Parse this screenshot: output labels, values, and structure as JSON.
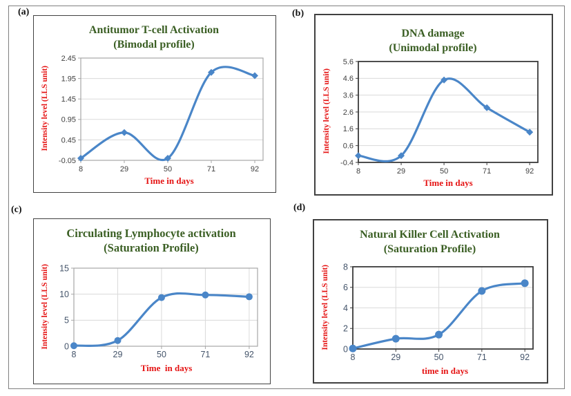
{
  "figure": {
    "background": "#ffffff",
    "outer_border_color": "#7f7f7f"
  },
  "colors": {
    "line_blue": "#4A86C8",
    "grid_gray": "#DADADA",
    "title_green": "#3A5E23",
    "axis_label_red": "#E51414",
    "border_light": "#A6A6A6",
    "border_dark": "#3A3A3A"
  },
  "chart_data": [
    {
      "type": "line",
      "panel_tag": "(a)",
      "title": "Antitumor T-cell Activation",
      "subtitle": "(Bimodal profile)",
      "ylabel": "Intensity level (LLS unit)",
      "xlabel": "Time in days",
      "x": [
        8,
        29,
        50,
        71,
        92
      ],
      "values": [
        0.0,
        0.63,
        0.0,
        2.1,
        2.02
      ],
      "xtick_labels": [
        "8",
        "29",
        "50",
        "71",
        "92"
      ],
      "ytick_values": [
        -0.05,
        0.45,
        0.95,
        1.45,
        1.95,
        2.45
      ],
      "ytick_labels": [
        "-0.05",
        "0.45",
        "0.95",
        "1.45",
        "1.95",
        "2.45"
      ],
      "xlim": [
        8,
        96
      ],
      "ylim": [
        -0.05,
        2.45
      ],
      "marker": "diamond",
      "grid_vertical": false,
      "border": "light",
      "tick_color": "#404040",
      "legend": null
    },
    {
      "type": "line",
      "panel_tag": "(b)",
      "title": "DNA damage",
      "subtitle": "(Unimodal profile)",
      "ylabel": "Intensity level (LLS unit)",
      "xlabel": "Time in days",
      "x": [
        8,
        29,
        50,
        71,
        92
      ],
      "values": [
        0.0,
        0.0,
        4.5,
        2.85,
        1.4
      ],
      "xtick_labels": [
        "8",
        "29",
        "50",
        "71",
        "92"
      ],
      "ytick_values": [
        -0.4,
        0.6,
        1.6,
        2.6,
        3.6,
        4.6,
        5.6
      ],
      "ytick_labels": [
        "-0.4",
        "0.6",
        "1.6",
        "2.6",
        "3.6",
        "4.6",
        "5.6"
      ],
      "xlim": [
        8,
        96
      ],
      "ylim": [
        -0.4,
        5.6
      ],
      "marker": "diamond",
      "grid_vertical": false,
      "border": "dark",
      "tick_color": "#404040",
      "legend": null
    },
    {
      "type": "line",
      "panel_tag": "(c)",
      "title": "Circulating Lymphocyte activation",
      "subtitle": "(Saturation Profile)",
      "ylabel": "Intensity level (LLS unit)",
      "xlabel": "Time  in days",
      "x": [
        8,
        29,
        50,
        71,
        92
      ],
      "values": [
        0.1,
        1.1,
        9.35,
        9.85,
        9.5
      ],
      "xtick_labels": [
        "8",
        "29",
        "50",
        "71",
        "92"
      ],
      "ytick_values": [
        0,
        5,
        10,
        15
      ],
      "ytick_labels": [
        "0",
        "5",
        "10",
        "15"
      ],
      "xlim": [
        8,
        96
      ],
      "ylim": [
        0,
        15
      ],
      "marker": "circle",
      "grid_vertical": true,
      "border": "light",
      "tick_color": "#44546A",
      "legend": null
    },
    {
      "type": "line",
      "panel_tag": "(d)",
      "title": "Natural Killer Cell Activation",
      "subtitle": "(Saturation Profile)",
      "ylabel": "Intensity level (LLS unit)",
      "xlabel": "time in days",
      "x": [
        8,
        29,
        50,
        71,
        92
      ],
      "values": [
        0.05,
        1.0,
        1.4,
        5.65,
        6.4
      ],
      "xtick_labels": [
        "8",
        "29",
        "50",
        "71",
        "92"
      ],
      "ytick_values": [
        0,
        2,
        4,
        6,
        8
      ],
      "ytick_labels": [
        "0",
        "2",
        "4",
        "6",
        "8"
      ],
      "xlim": [
        8,
        96
      ],
      "ylim": [
        0,
        8
      ],
      "marker": "circle",
      "grid_vertical": true,
      "border": "dark",
      "tick_color": "#44546A",
      "legend": null
    }
  ]
}
